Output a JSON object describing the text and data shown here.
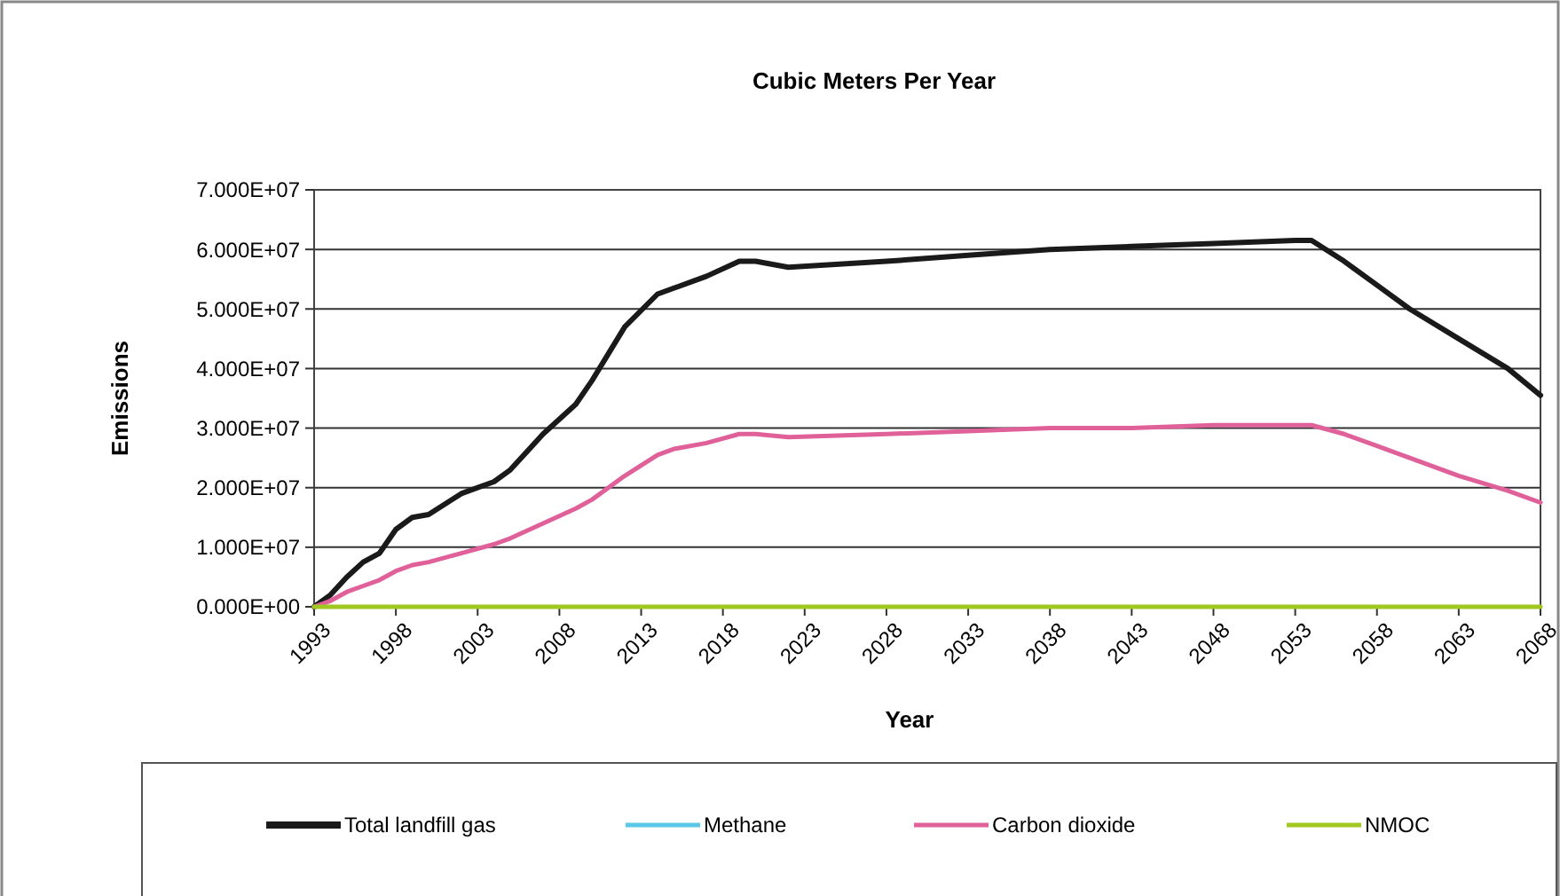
{
  "chart_data": {
    "type": "line",
    "title": "Cubic Meters Per Year",
    "xlabel": "Year",
    "ylabel": "Emissions",
    "x": [
      1993,
      1994,
      1995,
      1996,
      1997,
      1998,
      1999,
      2000,
      2002,
      2004,
      2005,
      2007,
      2009,
      2010,
      2012,
      2014,
      2015,
      2017,
      2019,
      2020,
      2022,
      2028,
      2033,
      2038,
      2043,
      2048,
      2053,
      2054,
      2056,
      2058,
      2060,
      2063,
      2066,
      2068
    ],
    "series": [
      {
        "name": "Total landfill gas",
        "color": "#1a1a1a",
        "values": [
          0,
          2000000,
          5000000,
          7500000,
          9000000,
          13000000,
          15000000,
          15500000,
          19000000,
          21000000,
          23000000,
          29000000,
          34000000,
          38000000,
          47000000,
          52500000,
          53500000,
          55500000,
          58000000,
          58000000,
          57000000,
          58000000,
          59000000,
          60000000,
          60500000,
          61000000,
          61500000,
          61500000,
          58000000,
          54000000,
          50000000,
          45000000,
          40000000,
          35500000
        ]
      },
      {
        "name": "Methane",
        "color": "#5bc8e8",
        "values": [
          null,
          null,
          null,
          null,
          null,
          null,
          null,
          null,
          null,
          null,
          null,
          null,
          null,
          null,
          null,
          null,
          null,
          null,
          null,
          null,
          null,
          null,
          null,
          null,
          null,
          null,
          null,
          null,
          null,
          null,
          null,
          null,
          null,
          null
        ]
      },
      {
        "name": "Carbon dioxide",
        "color": "#e0609a",
        "values": [
          0,
          1000000,
          2500000,
          3500000,
          4500000,
          6000000,
          7000000,
          7500000,
          9000000,
          10500000,
          11500000,
          14000000,
          16500000,
          18000000,
          22000000,
          25500000,
          26500000,
          27500000,
          29000000,
          29000000,
          28500000,
          29000000,
          29500000,
          30000000,
          30000000,
          30500000,
          30500000,
          30500000,
          29000000,
          27000000,
          25000000,
          22000000,
          19500000,
          17500000
        ]
      },
      {
        "name": "NMOC",
        "color": "#a0c820",
        "values": [
          0,
          0,
          0,
          0,
          0,
          0,
          0,
          0,
          0,
          0,
          0,
          0,
          0,
          0,
          0,
          0,
          0,
          0,
          0,
          0,
          0,
          0,
          0,
          0,
          0,
          0,
          0,
          0,
          0,
          0,
          0,
          0,
          0,
          0
        ]
      }
    ],
    "xlim": [
      1993,
      2068
    ],
    "xticks": [
      1993,
      1998,
      2003,
      2008,
      2013,
      2018,
      2023,
      2028,
      2033,
      2038,
      2043,
      2048,
      2053,
      2058,
      2063,
      2068
    ],
    "ylim": [
      0,
      70000000
    ],
    "yticks": [
      {
        "value": 0,
        "label": "0.000E+00"
      },
      {
        "value": 10000000,
        "label": "1.000E+07"
      },
      {
        "value": 20000000,
        "label": "2.000E+07"
      },
      {
        "value": 30000000,
        "label": "3.000E+07"
      },
      {
        "value": 40000000,
        "label": "4.000E+07"
      },
      {
        "value": 50000000,
        "label": "5.000E+07"
      },
      {
        "value": 60000000,
        "label": "6.000E+07"
      },
      {
        "value": 70000000,
        "label": "7.000E+07"
      }
    ],
    "grid": "y",
    "legend": "bottom",
    "marker": "none",
    "line_style": "solid"
  }
}
